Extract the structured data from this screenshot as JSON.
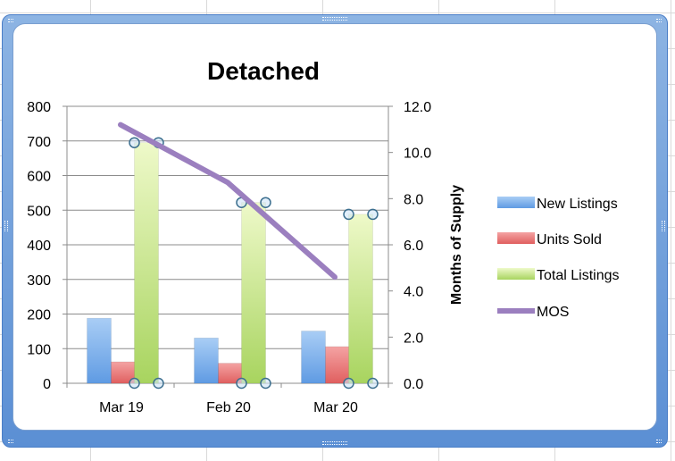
{
  "chart_data": {
    "type": "bar",
    "title": "Detached",
    "categories": [
      "Mar 19",
      "Feb 20",
      "Mar 20"
    ],
    "series": [
      {
        "name": "New Listings",
        "kind": "bar",
        "axis": "left",
        "values": [
          188,
          131,
          151
        ],
        "color": "#6fa8e8"
      },
      {
        "name": "Units Sold",
        "kind": "bar",
        "axis": "left",
        "values": [
          62,
          58,
          106
        ],
        "color": "#e97b7b"
      },
      {
        "name": "Total Listings",
        "kind": "bar",
        "axis": "left",
        "values": [
          695,
          522,
          488
        ],
        "color": "#c6e58a"
      },
      {
        "name": "MOS",
        "kind": "line",
        "axis": "right",
        "values": [
          11.2,
          8.7,
          4.6
        ],
        "color": "#9b7fbf"
      }
    ],
    "y_left": {
      "min": 0,
      "max": 800,
      "step": 100,
      "ticks": [
        "0",
        "100",
        "200",
        "300",
        "400",
        "500",
        "600",
        "700",
        "800"
      ]
    },
    "y_right": {
      "min": 0,
      "max": 12,
      "step": 2,
      "label": "Months of Supply",
      "ticks": [
        "0.0",
        "2.0",
        "4.0",
        "6.0",
        "8.0",
        "10.0",
        "12.0"
      ]
    },
    "grid": true,
    "legend_position": "right"
  }
}
